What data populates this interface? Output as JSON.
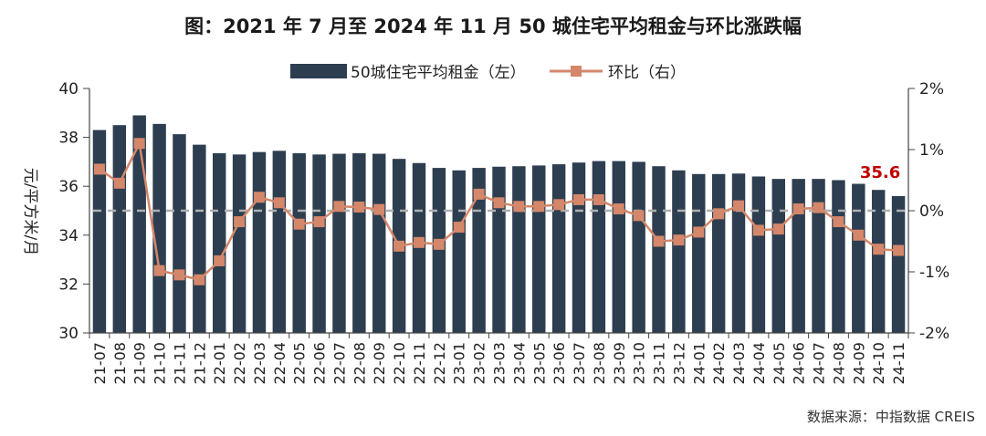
{
  "chart_data": {
    "type": "bar",
    "title": "图：2021 年 7 月至 2024 年 11 月 50 城住宅平均租金与环比涨跌幅",
    "ylabel": "元/平方米/月",
    "ylim": [
      30,
      40
    ],
    "yticks": [
      "40",
      "38",
      "36",
      "34",
      "32",
      "30"
    ],
    "y2lim": [
      -2,
      2
    ],
    "y2ticks": [
      "2%",
      "1%",
      "0%",
      "-1%",
      "-2%"
    ],
    "reference_line": 0,
    "categories": [
      "21-07",
      "21-08",
      "21-09",
      "21-10",
      "21-11",
      "21-12",
      "22-01",
      "22-02",
      "22-03",
      "22-04",
      "22-05",
      "22-06",
      "22-07",
      "22-08",
      "22-09",
      "22-10",
      "22-11",
      "22-12",
      "23-01",
      "23-02",
      "23-03",
      "23-04",
      "23-05",
      "23-06",
      "23-07",
      "23-08",
      "23-09",
      "23-10",
      "23-11",
      "23-12",
      "24-01",
      "24-02",
      "24-03",
      "24-04",
      "24-05",
      "24-06",
      "24-07",
      "24-08",
      "24-09",
      "24-10",
      "24-11"
    ],
    "series": [
      {
        "name": "50城住宅平均租金（左）",
        "kind": "bar",
        "axis": "left",
        "color": "#2d3e50",
        "values": [
          38.3,
          38.5,
          38.9,
          38.55,
          38.13,
          37.7,
          37.35,
          37.3,
          37.4,
          37.45,
          37.35,
          37.3,
          37.33,
          37.35,
          37.33,
          37.12,
          36.95,
          36.75,
          36.65,
          36.75,
          36.8,
          36.82,
          36.85,
          36.9,
          36.97,
          37.03,
          37.03,
          37.0,
          36.82,
          36.65,
          36.5,
          36.5,
          36.52,
          36.4,
          36.3,
          36.3,
          36.3,
          36.25,
          36.1,
          35.85,
          35.6
        ]
      },
      {
        "name": "环比（右）",
        "kind": "line",
        "axis": "right",
        "color": "#d4876a",
        "values": [
          0.68,
          0.45,
          1.1,
          -0.98,
          -1.05,
          -1.13,
          -0.82,
          -0.18,
          0.22,
          0.13,
          -0.22,
          -0.18,
          0.07,
          0.06,
          0.02,
          -0.58,
          -0.52,
          -0.55,
          -0.27,
          0.27,
          0.13,
          0.07,
          0.07,
          0.1,
          0.18,
          0.18,
          0.03,
          -0.08,
          -0.5,
          -0.48,
          -0.35,
          -0.05,
          0.08,
          -0.32,
          -0.3,
          0.03,
          0.05,
          -0.18,
          -0.4,
          -0.63,
          -0.65
        ]
      }
    ],
    "annotation": {
      "text": "35.6",
      "color": "#c00000"
    },
    "source": "数据来源：中指数据 CREIS"
  }
}
